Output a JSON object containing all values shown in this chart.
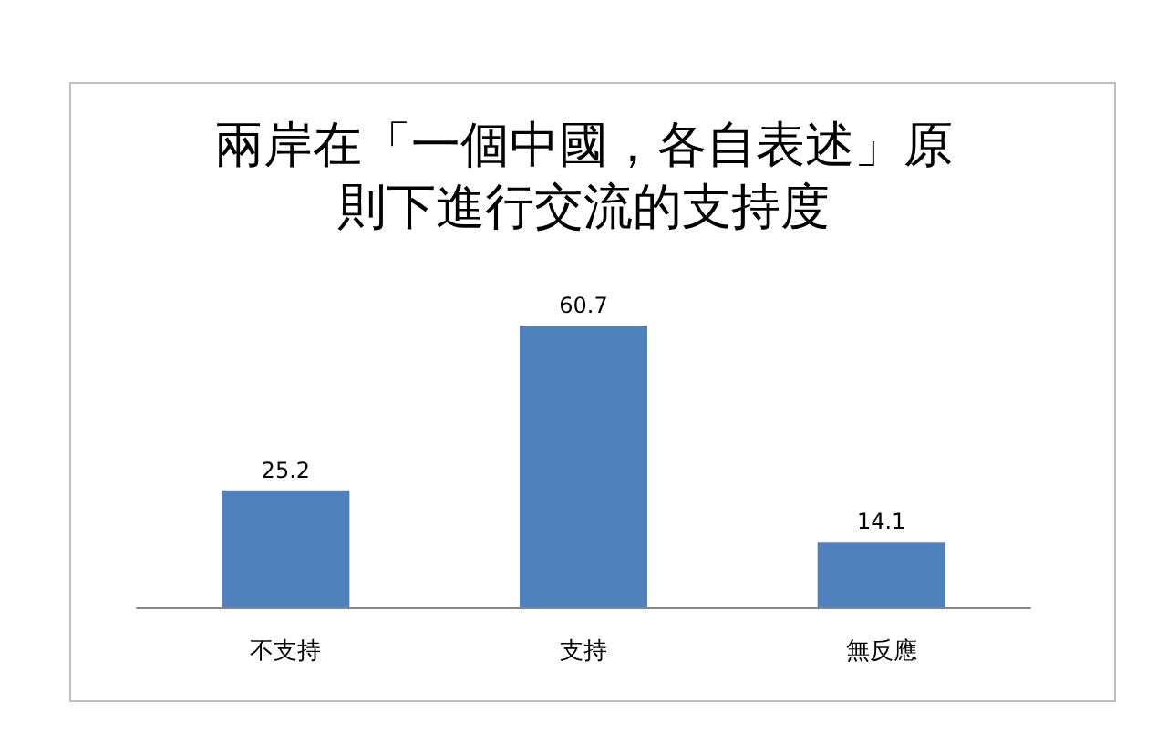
{
  "chart_data": {
    "type": "bar",
    "title": "兩岸在「一個中國，各自表述」原則下進行交流的支持度",
    "categories": [
      "不支持",
      "支持",
      "無反應"
    ],
    "values": [
      25.2,
      60.7,
      14.1
    ],
    "color": "#4f81bd",
    "data_labels": true
  }
}
